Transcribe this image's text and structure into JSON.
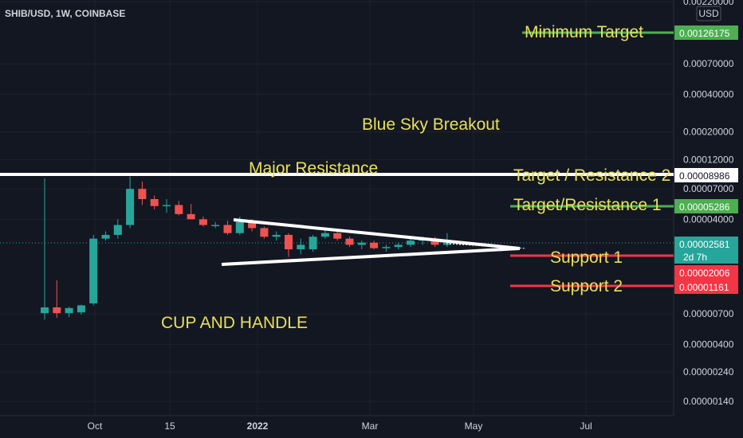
{
  "header": {
    "symbol": "SHIB/USD, 1W, COINBASE",
    "currency": "USD"
  },
  "annotations": {
    "minimum_target": "Minimum Target",
    "blue_sky": "Blue Sky Breakout",
    "major_resistance": "Major Resistance",
    "target_res2": "Target / Resistance 2",
    "target_res1": "Target/Resistance 1",
    "support1": "Support 1",
    "support2": "Support 2",
    "cup_handle": "CUP AND HANDLE"
  },
  "badges": {
    "min_target": "0.00126175",
    "res2": "0.00008986",
    "res1": "0.00005286",
    "current": "0.00002581",
    "countdown": "2d 7h",
    "support1": "0.00002006",
    "support2": "0.00001161"
  },
  "colors": {
    "bg": "#131722",
    "up": "#26a69a",
    "down": "#ef5350",
    "annotation": "#e8e05a",
    "green_line": "#4caf50",
    "red_line": "#f23645"
  },
  "chart_data": {
    "type": "candlestick",
    "symbol": "SHIB/USD",
    "interval": "1W",
    "exchange": "COINBASE",
    "y_scale": "log",
    "y_ticks": [
      "0.00220000",
      "0.00070000",
      "0.00040000",
      "0.00020000",
      "0.00012000",
      "0.00007000",
      "0.00004000",
      "0.00000700",
      "0.00000400",
      "0.00000240",
      "0.00000140"
    ],
    "x_ticks": [
      "Oct",
      "15",
      "2022",
      "Mar",
      "May",
      "Jul"
    ],
    "candles": [
      {
        "o": 7.1e-06,
        "h": 8.5e-05,
        "l": 6.3e-06,
        "c": 7.9e-06
      },
      {
        "o": 7.9e-06,
        "h": 1.3e-05,
        "l": 6.5e-06,
        "c": 7.1e-06
      },
      {
        "o": 7.1e-06,
        "h": 8e-06,
        "l": 6.6e-06,
        "c": 7.8e-06
      },
      {
        "o": 7.2e-06,
        "h": 8.3e-06,
        "l": 6.9e-06,
        "c": 8.2e-06
      },
      {
        "o": 8.5e-06,
        "h": 3e-05,
        "l": 8.2e-06,
        "c": 2.8e-05
      },
      {
        "o": 2.8e-05,
        "h": 3.2e-05,
        "l": 2.7e-05,
        "c": 3e-05
      },
      {
        "o": 3e-05,
        "h": 4e-05,
        "l": 2.8e-05,
        "c": 3.6e-05
      },
      {
        "o": 3.6e-05,
        "h": 8.8e-05,
        "l": 3.4e-05,
        "c": 7e-05
      },
      {
        "o": 7e-05,
        "h": 8e-05,
        "l": 5.2e-05,
        "c": 5.8e-05
      },
      {
        "o": 5.8e-05,
        "h": 6.2e-05,
        "l": 4.8e-05,
        "c": 5.1e-05
      },
      {
        "o": 5.1e-05,
        "h": 5.8e-05,
        "l": 4.5e-05,
        "c": 5.2e-05
      },
      {
        "o": 5.2e-05,
        "h": 5.6e-05,
        "l": 4.3e-05,
        "c": 4.4e-05
      },
      {
        "o": 4.4e-05,
        "h": 5.3e-05,
        "l": 4e-05,
        "c": 4e-05
      },
      {
        "o": 4e-05,
        "h": 4.2e-05,
        "l": 3.5e-05,
        "c": 3.6e-05
      },
      {
        "o": 3.6e-05,
        "h": 3.8e-05,
        "l": 3.4e-05,
        "c": 3.6e-05
      },
      {
        "o": 3.6e-05,
        "h": 3.9e-05,
        "l": 3e-05,
        "c": 3.1e-05
      },
      {
        "o": 3.1e-05,
        "h": 4.2e-05,
        "l": 3e-05,
        "c": 3.8e-05
      },
      {
        "o": 3.8e-05,
        "h": 4e-05,
        "l": 3.2e-05,
        "c": 3.4e-05
      },
      {
        "o": 3.4e-05,
        "h": 3.5e-05,
        "l": 2.8e-05,
        "c": 2.9e-05
      },
      {
        "o": 2.9e-05,
        "h": 3.2e-05,
        "l": 2.7e-05,
        "c": 3e-05
      },
      {
        "o": 3e-05,
        "h": 3.1e-05,
        "l": 2e-05,
        "c": 2.3e-05
      },
      {
        "o": 2.3e-05,
        "h": 2.8e-05,
        "l": 2.1e-05,
        "c": 2.5e-05
      },
      {
        "o": 2.3e-05,
        "h": 3e-05,
        "l": 2.2e-05,
        "c": 2.9e-05
      },
      {
        "o": 2.9e-05,
        "h": 3.4e-05,
        "l": 2.8e-05,
        "c": 3.1e-05
      },
      {
        "o": 3.1e-05,
        "h": 3.2e-05,
        "l": 2.7e-05,
        "c": 2.8e-05
      },
      {
        "o": 2.8e-05,
        "h": 2.9e-05,
        "l": 2.4e-05,
        "c": 2.5e-05
      },
      {
        "o": 2.5e-05,
        "h": 2.7e-05,
        "l": 2.3e-05,
        "c": 2.6e-05
      },
      {
        "o": 2.6e-05,
        "h": 2.7e-05,
        "l": 2.3e-05,
        "c": 2.35e-05
      },
      {
        "o": 2.35e-05,
        "h": 2.5e-05,
        "l": 2.2e-05,
        "c": 2.4e-05
      },
      {
        "o": 2.4e-05,
        "h": 2.6e-05,
        "l": 2.3e-05,
        "c": 2.5e-05
      },
      {
        "o": 2.5e-05,
        "h": 2.8e-05,
        "l": 2.4e-05,
        "c": 2.7e-05
      },
      {
        "o": 2.7e-05,
        "h": 2.9e-05,
        "l": 2.5e-05,
        "c": 2.8e-05
      },
      {
        "o": 2.8e-05,
        "h": 2.9e-05,
        "l": 2.4e-05,
        "c": 2.5e-05
      },
      {
        "o": 2.5e-05,
        "h": 3.1e-05,
        "l": 2.4e-05,
        "c": 2.58e-05
      }
    ],
    "levels": [
      {
        "label": "Minimum Target",
        "value": 0.00126175
      },
      {
        "label": "Target / Resistance 2",
        "value": 8.986e-05
      },
      {
        "label": "Target/Resistance 1",
        "value": 5.286e-05
      },
      {
        "label": "Support 1",
        "value": 2.006e-05
      },
      {
        "label": "Support 2",
        "value": 1.161e-05
      }
    ]
  }
}
